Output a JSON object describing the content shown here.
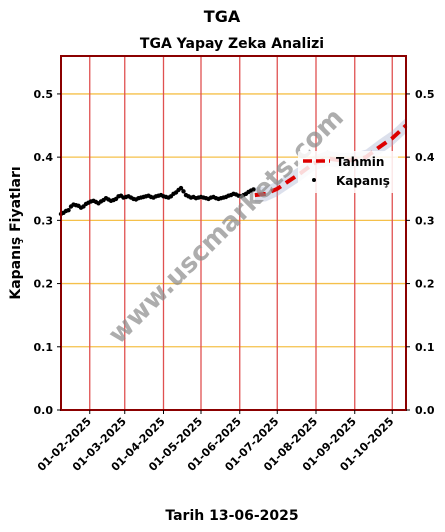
{
  "chart_data": {
    "type": "line",
    "suptitle": "TGA",
    "title": "TGA Yapay Zeka Analizi",
    "xlabel": "Tarih 13-06-2025",
    "ylabel": "Kapanış Fiyatları",
    "xlim": [
      "2025-01-09",
      "2025-10-12"
    ],
    "ylim": [
      0.0,
      0.56
    ],
    "yticks": [
      0.0,
      0.1,
      0.2,
      0.3,
      0.4,
      0.5
    ],
    "ytick_labels": [
      "0.0",
      "0.1",
      "0.2",
      "0.3",
      "0.4",
      "0.5"
    ],
    "xticks": [
      "2025-02-01",
      "2025-03-01",
      "2025-04-01",
      "2025-05-01",
      "2025-06-01",
      "2025-07-01",
      "2025-08-01",
      "2025-09-01",
      "2025-10-01"
    ],
    "xtick_labels": [
      "01-02-2025",
      "01-03-2025",
      "01-04-2025",
      "01-05-2025",
      "01-06-2025",
      "01-07-2025",
      "01-08-2025",
      "01-09-2025",
      "01-10-2025"
    ],
    "grid": true,
    "legend_position": "right",
    "watermark": "www.uscmarkets.com",
    "series": [
      {
        "name": "Kapanış",
        "kind": "scatter",
        "color": "#000000",
        "x": [
          "2025-01-09",
          "2025-01-11",
          "2025-01-13",
          "2025-01-15",
          "2025-01-17",
          "2025-01-19",
          "2025-01-21",
          "2025-01-23",
          "2025-01-25",
          "2025-01-27",
          "2025-01-29",
          "2025-01-31",
          "2025-02-02",
          "2025-02-04",
          "2025-02-06",
          "2025-02-08",
          "2025-02-10",
          "2025-02-12",
          "2025-02-14",
          "2025-02-16",
          "2025-02-18",
          "2025-02-20",
          "2025-02-22",
          "2025-02-24",
          "2025-02-26",
          "2025-02-28",
          "2025-03-02",
          "2025-03-04",
          "2025-03-06",
          "2025-03-08",
          "2025-03-10",
          "2025-03-12",
          "2025-03-14",
          "2025-03-16",
          "2025-03-18",
          "2025-03-20",
          "2025-03-22",
          "2025-03-24",
          "2025-03-26",
          "2025-03-28",
          "2025-03-30",
          "2025-04-01",
          "2025-04-03",
          "2025-04-05",
          "2025-04-07",
          "2025-04-09",
          "2025-04-11",
          "2025-04-13",
          "2025-04-15",
          "2025-04-17",
          "2025-04-19",
          "2025-04-21",
          "2025-04-23",
          "2025-04-25",
          "2025-04-27",
          "2025-04-29",
          "2025-05-01",
          "2025-05-03",
          "2025-05-05",
          "2025-05-07",
          "2025-05-09",
          "2025-05-11",
          "2025-05-13",
          "2025-05-15",
          "2025-05-17",
          "2025-05-19",
          "2025-05-21",
          "2025-05-23",
          "2025-05-25",
          "2025-05-27",
          "2025-05-29",
          "2025-05-31",
          "2025-06-02",
          "2025-06-04",
          "2025-06-06",
          "2025-06-08",
          "2025-06-10",
          "2025-06-12"
        ],
        "y": [
          0.31,
          0.312,
          0.315,
          0.316,
          0.322,
          0.325,
          0.324,
          0.323,
          0.32,
          0.322,
          0.326,
          0.328,
          0.33,
          0.331,
          0.329,
          0.327,
          0.33,
          0.332,
          0.335,
          0.333,
          0.331,
          0.332,
          0.334,
          0.338,
          0.339,
          0.336,
          0.337,
          0.338,
          0.336,
          0.334,
          0.333,
          0.335,
          0.336,
          0.337,
          0.338,
          0.339,
          0.337,
          0.336,
          0.338,
          0.339,
          0.34,
          0.338,
          0.337,
          0.336,
          0.338,
          0.342,
          0.344,
          0.348,
          0.351,
          0.346,
          0.34,
          0.338,
          0.336,
          0.337,
          0.335,
          0.336,
          0.337,
          0.336,
          0.335,
          0.334,
          0.336,
          0.337,
          0.335,
          0.334,
          0.335,
          0.336,
          0.337,
          0.339,
          0.34,
          0.342,
          0.341,
          0.339,
          0.338,
          0.34,
          0.342,
          0.345,
          0.347,
          0.349
        ]
      },
      {
        "name": "Tahmin",
        "kind": "line",
        "style": "dashed",
        "color": "#dd0000",
        "x": [
          "2025-06-13",
          "2025-06-22",
          "2025-07-01",
          "2025-07-10",
          "2025-07-20",
          "2025-07-30",
          "2025-08-10",
          "2025-08-20",
          "2025-09-01",
          "2025-09-10",
          "2025-09-20",
          "2025-10-01",
          "2025-10-12"
        ],
        "y": [
          0.34,
          0.342,
          0.35,
          0.362,
          0.375,
          0.39,
          0.398,
          0.395,
          0.395,
          0.4,
          0.415,
          0.43,
          0.45
        ]
      }
    ]
  }
}
